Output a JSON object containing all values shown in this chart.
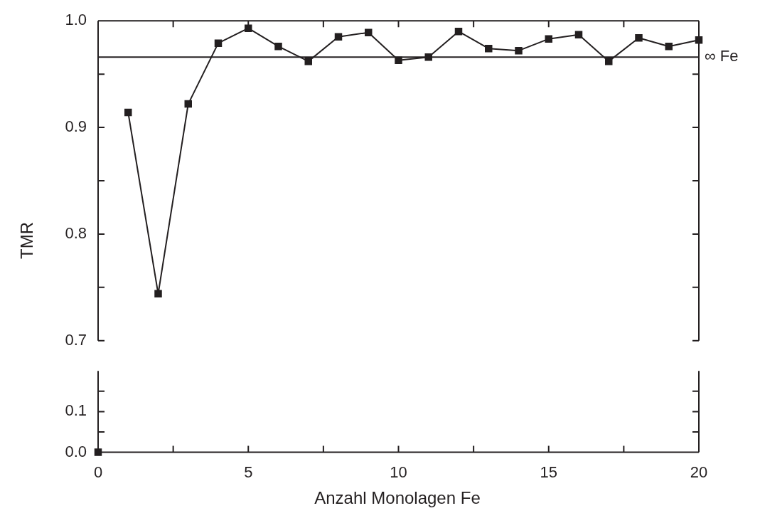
{
  "chart_data": [
    {
      "type": "line",
      "ylabel": "TMR",
      "xlim": [
        0,
        20
      ],
      "xticks": [
        {
          "value": 0,
          "label": null
        },
        {
          "value": 2.5,
          "label": null
        },
        {
          "value": 5,
          "label": null
        },
        {
          "value": 7.5,
          "label": null
        },
        {
          "value": 10,
          "label": null
        },
        {
          "value": 12.5,
          "label": null
        },
        {
          "value": 15,
          "label": null
        },
        {
          "value": 17.5,
          "label": null
        },
        {
          "value": 20,
          "label": null
        }
      ],
      "ylim": [
        0.7,
        1.0
      ],
      "yticks": [
        {
          "value": 0.7,
          "label": "0.7"
        },
        {
          "value": 0.75,
          "label": null
        },
        {
          "value": 0.8,
          "label": "0.8"
        },
        {
          "value": 0.85,
          "label": null
        },
        {
          "value": 0.9,
          "label": "0.9"
        },
        {
          "value": 0.95,
          "label": null
        },
        {
          "value": 1.0,
          "label": "1.0"
        }
      ],
      "tick_labels": "y",
      "marker": "square",
      "line_style": "solid",
      "series": [
        {
          "color": "#231f20",
          "x": [
            1,
            2,
            3,
            4,
            5,
            6,
            7,
            8,
            9,
            10,
            11,
            12,
            13,
            14,
            15,
            16,
            17,
            18,
            19,
            20
          ],
          "values": [
            0.914,
            0.744,
            0.922,
            0.979,
            0.993,
            0.976,
            0.962,
            0.985,
            0.989,
            0.963,
            0.966,
            0.99,
            0.974,
            0.972,
            0.983,
            0.987,
            0.962,
            0.984,
            0.976,
            0.982
          ]
        }
      ],
      "ref_lines": [
        {
          "axis": "y",
          "value": 0.966,
          "label": "∞ Fe",
          "color": "#231f20"
        }
      ]
    },
    {
      "type": "line",
      "xlabel": "Anzahl Monolagen Fe",
      "xlim": [
        0,
        20
      ],
      "xticks": [
        0,
        {
          "value": 2.5,
          "label": null
        },
        5,
        {
          "value": 7.5,
          "label": null
        },
        10,
        {
          "value": 12.5,
          "label": null
        },
        15,
        {
          "value": 17.5,
          "label": null
        },
        20
      ],
      "ylim": [
        0,
        0.2
      ],
      "yticks": [
        {
          "value": 0,
          "label": "0.0"
        },
        {
          "value": 0.05,
          "label": null
        },
        {
          "value": 0.1,
          "label": "0.1"
        },
        {
          "value": 0.15,
          "label": null
        }
      ],
      "marker": "square",
      "line_style": "solid",
      "series": [
        {
          "color": "#231f20",
          "x": [
            0
          ],
          "values": [
            0.0
          ]
        }
      ]
    }
  ]
}
